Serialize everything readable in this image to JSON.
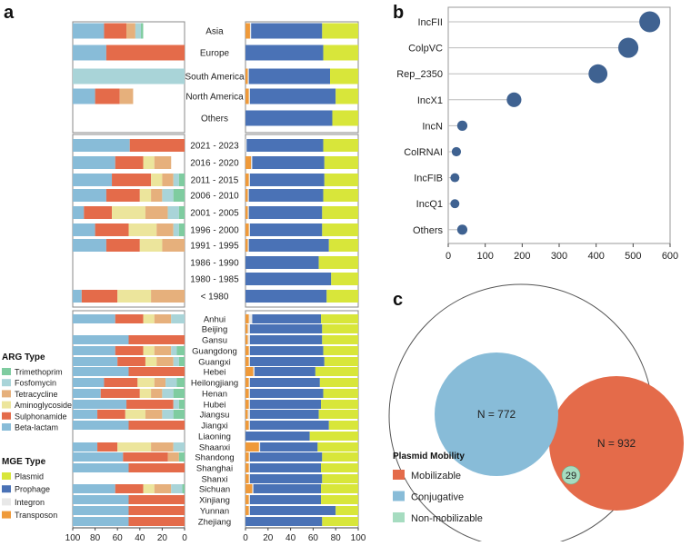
{
  "colors": {
    "arg": {
      "Trimethoprim": "#7fcca0",
      "Fosfomycin": "#a9d4d8",
      "Tetracycline": "#e6b07c",
      "Aminoglycoside": "#ece59c",
      "Sulphonamide": "#e46b4a",
      "Beta-lactam": "#88bcd8"
    },
    "mge": {
      "Plasmid": "#d8e63a",
      "Prophage": "#4a72b6",
      "Integron": "#e8e8e8",
      "Transposon": "#ef9a3a"
    },
    "dot": "#3f6291",
    "venn": {
      "Conjugative": "#88bcd8",
      "Mobilizable": "#e46b4a",
      "Non-mobilizable": "#a6dcc0"
    }
  },
  "panels": {
    "a": "a",
    "b": "b",
    "c": "c"
  },
  "legend": {
    "arg_title": "ARG Type",
    "arg_items": [
      {
        "label": "Trimethoprim",
        "key": "Trimethoprim"
      },
      {
        "label": "Fosfomycin",
        "key": "Fosfomycin"
      },
      {
        "label": "Tetracycline",
        "key": "Tetracycline"
      },
      {
        "label": "Aminoglycoside",
        "key": "Aminoglycoside"
      },
      {
        "label": "Sulphonamide",
        "key": "Sulphonamide"
      },
      {
        "label": "Beta-lactam",
        "key": "Beta-lactam"
      }
    ],
    "mge_title": "MGE Type",
    "mge_items": [
      {
        "label": "Plasmid",
        "key": "Plasmid"
      },
      {
        "label": "Prophage",
        "key": "Prophage"
      },
      {
        "label": "Integron",
        "key": "Integron"
      },
      {
        "label": "Transposon",
        "key": "Transposon"
      }
    ]
  },
  "chart_data": [
    {
      "type": "bar",
      "title": "a",
      "orientation": "horizontal-stacked",
      "left_axis": {
        "ticks": [
          "100",
          "80",
          "60",
          "40",
          "20",
          "0"
        ],
        "range": [
          100,
          0
        ],
        "series_order": [
          "Beta-lactam",
          "Sulphonamide",
          "Aminoglycoside",
          "Tetracycline",
          "Fosfomycin",
          "Trimethoprim"
        ]
      },
      "right_axis": {
        "ticks": [
          "0",
          "20",
          "40",
          "60",
          "80",
          "100"
        ],
        "range": [
          0,
          100
        ],
        "series_order": [
          "Transposon",
          "Integron",
          "Prophage",
          "Plasmid"
        ]
      },
      "groups": [
        {
          "name": "region",
          "categories": [
            {
              "label": "Asia",
              "arg": [
                28,
                20,
                0,
                8,
                5,
                2
              ],
              "mge": [
                4,
                1,
                63,
                32
              ]
            },
            {
              "label": "Europe",
              "arg": [
                30,
                70,
                0,
                0,
                0,
                0
              ],
              "mge": [
                0,
                0,
                69,
                31
              ]
            },
            {
              "label": "South America",
              "arg": [
                0,
                0,
                0,
                0,
                100,
                0
              ],
              "mge": [
                2,
                1,
                72,
                25
              ]
            },
            {
              "label": "North America",
              "arg": [
                20,
                22,
                0,
                12,
                0,
                0
              ],
              "mge": [
                3,
                1,
                76,
                20
              ]
            },
            {
              "label": "Others",
              "arg": [
                0,
                0,
                0,
                0,
                0,
                0
              ],
              "mge": [
                0,
                0,
                77,
                23
              ]
            }
          ]
        },
        {
          "name": "period",
          "categories": [
            {
              "label": "2021 - 2023",
              "arg": [
                51,
                49,
                0,
                0,
                0,
                0
              ],
              "mge": [
                0,
                1,
                68,
                31
              ]
            },
            {
              "label": "2016 - 2020",
              "arg": [
                38,
                25,
                10,
                15,
                0,
                0
              ],
              "mge": [
                5,
                1,
                64,
                30
              ]
            },
            {
              "label": "2011 - 2015",
              "arg": [
                35,
                35,
                10,
                10,
                5,
                5
              ],
              "mge": [
                3,
                1,
                66,
                30
              ]
            },
            {
              "label": "2006 - 2010",
              "arg": [
                30,
                30,
                10,
                10,
                10,
                10
              ],
              "mge": [
                2,
                1,
                66,
                31
              ]
            },
            {
              "label": "2001 - 2005",
              "arg": [
                10,
                25,
                30,
                20,
                10,
                5
              ],
              "mge": [
                2,
                1,
                65,
                32
              ]
            },
            {
              "label": "1996 - 2000",
              "arg": [
                20,
                30,
                25,
                15,
                5,
                5
              ],
              "mge": [
                3,
                1,
                64,
                32
              ]
            },
            {
              "label": "1991 - 1995",
              "arg": [
                30,
                30,
                20,
                20,
                0,
                0
              ],
              "mge": [
                2,
                1,
                71,
                26
              ]
            },
            {
              "label": "1986 - 1990",
              "arg": [
                0,
                0,
                0,
                0,
                0,
                0
              ],
              "mge": [
                0,
                0,
                65,
                35
              ]
            },
            {
              "label": "1980 - 1985",
              "arg": [
                0,
                0,
                0,
                0,
                0,
                0
              ],
              "mge": [
                0,
                0,
                76,
                24
              ]
            },
            {
              "label": "< 1980",
              "arg": [
                8,
                32,
                30,
                30,
                0,
                0
              ],
              "mge": [
                0,
                0,
                72,
                28
              ]
            }
          ]
        },
        {
          "name": "province",
          "categories": [
            {
              "label": "Anhui",
              "arg": [
                38,
                25,
                10,
                15,
                12,
                0
              ],
              "mge": [
                3,
                3,
                61,
                33
              ]
            },
            {
              "label": "Beijing",
              "arg": [
                0,
                0,
                0,
                0,
                0,
                0
              ],
              "mge": [
                2,
                2,
                64,
                32
              ]
            },
            {
              "label": "Gansu",
              "arg": [
                50,
                50,
                0,
                0,
                0,
                0
              ],
              "mge": [
                2,
                2,
                64,
                32
              ]
            },
            {
              "label": "Guangdong",
              "arg": [
                38,
                25,
                10,
                15,
                5,
                7
              ],
              "mge": [
                3,
                1,
                65,
                31
              ]
            },
            {
              "label": "Guangxi",
              "arg": [
                40,
                25,
                10,
                15,
                5,
                5
              ],
              "mge": [
                3,
                1,
                66,
                30
              ]
            },
            {
              "label": "Hebei",
              "arg": [
                50,
                50,
                0,
                0,
                0,
                0
              ],
              "mge": [
                7,
                1,
                54,
                38
              ]
            },
            {
              "label": "Heilongjiang",
              "arg": [
                28,
                30,
                15,
                10,
                10,
                7
              ],
              "mge": [
                3,
                1,
                62,
                34
              ]
            },
            {
              "label": "Henan",
              "arg": [
                25,
                35,
                10,
                10,
                10,
                10
              ],
              "mge": [
                3,
                1,
                65,
                31
              ]
            },
            {
              "label": "Hubei",
              "arg": [
                48,
                42,
                0,
                0,
                5,
                5
              ],
              "mge": [
                3,
                1,
                63,
                33
              ]
            },
            {
              "label": "Jiangsu",
              "arg": [
                22,
                25,
                18,
                15,
                10,
                10
              ],
              "mge": [
                2,
                2,
                61,
                35
              ]
            },
            {
              "label": "Jiangxi",
              "arg": [
                50,
                50,
                0,
                0,
                0,
                0
              ],
              "mge": [
                3,
                1,
                70,
                26
              ]
            },
            {
              "label": "Liaoning",
              "arg": [
                0,
                0,
                0,
                0,
                0,
                0
              ],
              "mge": [
                0,
                0,
                57,
                43
              ]
            },
            {
              "label": "Shaanxi",
              "arg": [
                22,
                18,
                30,
                20,
                10,
                0
              ],
              "mge": [
                12,
                1,
                51,
                36
              ]
            },
            {
              "label": "Shandong",
              "arg": [
                45,
                40,
                0,
                10,
                0,
                5
              ],
              "mge": [
                3,
                1,
                64,
                32
              ]
            },
            {
              "label": "Shanghai",
              "arg": [
                50,
                50,
                0,
                0,
                0,
                0
              ],
              "mge": [
                3,
                1,
                63,
                33
              ]
            },
            {
              "label": "Shanxi",
              "arg": [
                0,
                0,
                0,
                0,
                0,
                0
              ],
              "mge": [
                3,
                1,
                64,
                32
              ]
            },
            {
              "label": "Sichuan",
              "arg": [
                38,
                25,
                10,
                15,
                10,
                2
              ],
              "mge": [
                6,
                1,
                60,
                33
              ]
            },
            {
              "label": "Xinjiang",
              "arg": [
                50,
                50,
                0,
                0,
                0,
                0
              ],
              "mge": [
                3,
                1,
                63,
                33
              ]
            },
            {
              "label": "Yunnan",
              "arg": [
                50,
                50,
                0,
                0,
                0,
                0
              ],
              "mge": [
                3,
                1,
                76,
                20
              ]
            },
            {
              "label": "Zhejiang",
              "arg": [
                50,
                50,
                0,
                0,
                0,
                0
              ],
              "mge": [
                0,
                0,
                68,
                32
              ]
            }
          ]
        }
      ]
    },
    {
      "type": "scatter",
      "title": "b",
      "categories": [
        "IncFII",
        "ColpVC",
        "Rep_2350",
        "IncX1",
        "IncN",
        "ColRNAI",
        "IncFIB",
        "IncQ1",
        "Others"
      ],
      "values": [
        545,
        487,
        405,
        178,
        38,
        22,
        18,
        18,
        38
      ],
      "xlim": [
        0,
        600
      ],
      "xticks": [
        "0",
        "100",
        "200",
        "300",
        "400",
        "500",
        "600"
      ]
    },
    {
      "type": "venn",
      "title": "c",
      "legend_title": "Plasmid Mobility",
      "sets": [
        {
          "label": "Mobilizable",
          "count": 932,
          "text": "N = 932"
        },
        {
          "label": "Conjugative",
          "count": 772,
          "text": "N = 772"
        },
        {
          "label": "Non-mobilizable",
          "count": 29,
          "text": "29"
        }
      ]
    }
  ]
}
